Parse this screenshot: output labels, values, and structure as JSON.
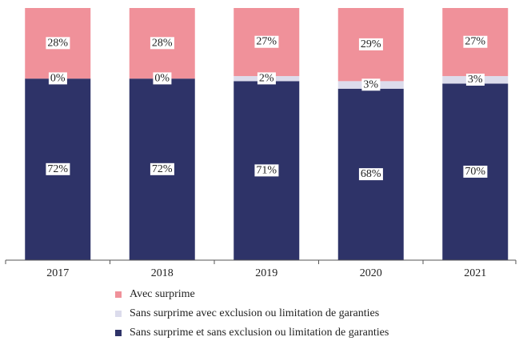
{
  "chart_data": {
    "type": "stacked_bar",
    "categories": [
      "2017",
      "2018",
      "2019",
      "2020",
      "2021"
    ],
    "series": [
      {
        "name": "Sans surprime et sans exclusion ou limitation de garanties",
        "color": "#2e3368",
        "values": [
          72,
          72,
          71,
          68,
          70
        ],
        "value_labels": [
          "72%",
          "72%",
          "71%",
          "68%",
          "70%"
        ]
      },
      {
        "name": "Sans surprime avec exclusion ou limitation de garanties",
        "color": "#dcdcec",
        "values": [
          0,
          0,
          2,
          3,
          3
        ],
        "value_labels": [
          "0%",
          "0%",
          "2%",
          "3%",
          "3%"
        ]
      },
      {
        "name": "Avec surprime",
        "color": "#f0919a",
        "values": [
          28,
          28,
          27,
          29,
          27
        ],
        "value_labels": [
          "28%",
          "28%",
          "27%",
          "29%",
          "27%"
        ]
      }
    ],
    "ylim": [
      0,
      100
    ]
  }
}
